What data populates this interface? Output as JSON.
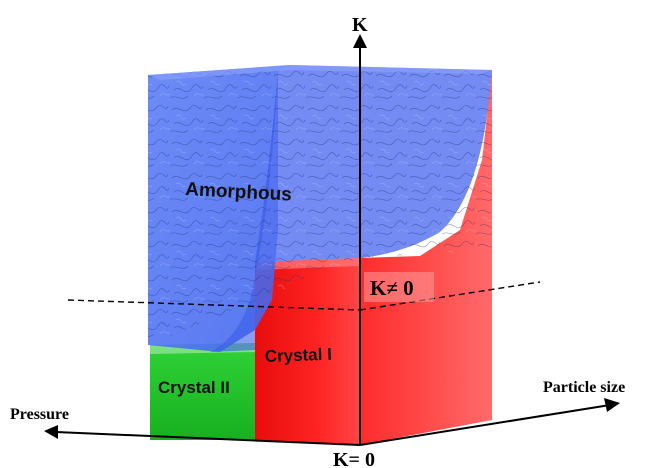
{
  "axes": {
    "vertical": "K",
    "left": "Pressure",
    "right": "Particle size",
    "origin": "K= 0",
    "plane": "K≠ 0"
  },
  "regions": {
    "amorphous": "Amorphous",
    "crystal_1": "Crystal I",
    "crystal_2": "Crystal II"
  },
  "colors": {
    "amorphous": "#4d6ef2",
    "crystal_1": "#ff1a1a",
    "crystal_2": "#22c42a",
    "axis": "#000000"
  }
}
